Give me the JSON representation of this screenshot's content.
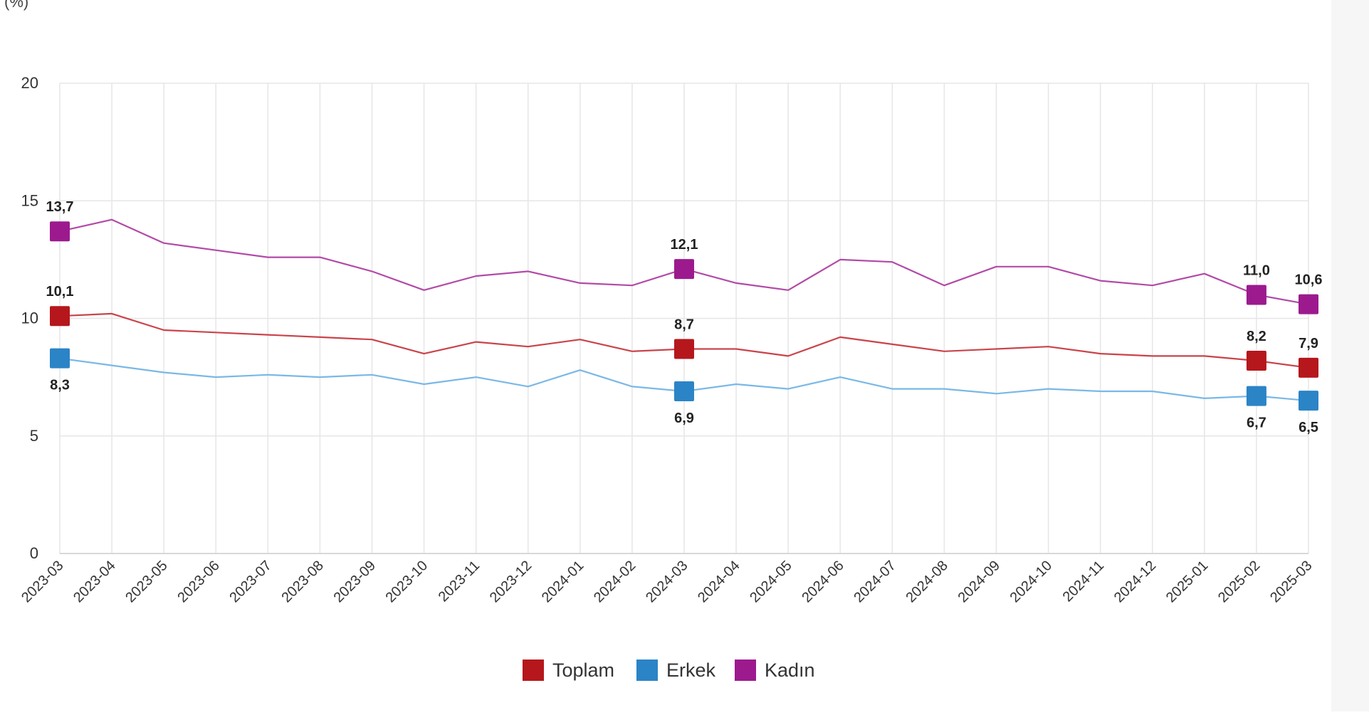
{
  "chart_data": {
    "type": "line",
    "unit_label": "(%)",
    "x": [
      "2023-03",
      "2023-04",
      "2023-05",
      "2023-06",
      "2023-07",
      "2023-08",
      "2023-09",
      "2023-10",
      "2023-11",
      "2023-12",
      "2024-01",
      "2024-02",
      "2024-03",
      "2024-04",
      "2024-05",
      "2024-06",
      "2024-07",
      "2024-08",
      "2024-09",
      "2024-10",
      "2024-11",
      "2024-12",
      "2025-01",
      "2025-02",
      "2025-03"
    ],
    "yticks": [
      "0",
      "5",
      "10",
      "15",
      "20"
    ],
    "ylim": [
      0,
      20
    ],
    "grid": true,
    "legend_position": "bottom",
    "series": [
      {
        "name": "Toplam",
        "color": "#b5171c",
        "line_color": "#c9444a",
        "values": [
          10.1,
          10.2,
          9.5,
          9.4,
          9.3,
          9.2,
          9.1,
          8.5,
          9.0,
          8.8,
          9.1,
          8.6,
          8.7,
          8.7,
          8.4,
          9.2,
          8.9,
          8.6,
          8.7,
          8.8,
          8.5,
          8.4,
          8.4,
          8.2,
          7.9
        ],
        "labels": [
          {
            "index": 0,
            "text": "10,1",
            "pos": "above"
          },
          {
            "index": 12,
            "text": "8,7",
            "pos": "above"
          },
          {
            "index": 23,
            "text": "8,2",
            "pos": "above"
          },
          {
            "index": 24,
            "text": "7,9",
            "pos": "above"
          }
        ]
      },
      {
        "name": "Erkek",
        "color": "#2b84c6",
        "line_color": "#7ab8e6",
        "values": [
          8.3,
          8.0,
          7.7,
          7.5,
          7.6,
          7.5,
          7.6,
          7.2,
          7.5,
          7.1,
          7.8,
          7.1,
          6.9,
          7.2,
          7.0,
          7.5,
          7.0,
          7.0,
          6.8,
          7.0,
          6.9,
          6.9,
          6.6,
          6.7,
          6.5
        ],
        "labels": [
          {
            "index": 0,
            "text": "8,3",
            "pos": "below"
          },
          {
            "index": 12,
            "text": "6,9",
            "pos": "below"
          },
          {
            "index": 23,
            "text": "6,7",
            "pos": "below"
          },
          {
            "index": 24,
            "text": "6,5",
            "pos": "below"
          }
        ]
      },
      {
        "name": "Kadın",
        "color": "#9c1a8e",
        "line_color": "#b24aa6",
        "values": [
          13.7,
          14.2,
          13.2,
          12.9,
          12.6,
          12.6,
          12.0,
          11.2,
          11.8,
          12.0,
          11.5,
          11.4,
          12.1,
          11.5,
          11.2,
          12.5,
          12.4,
          11.4,
          12.2,
          12.2,
          11.6,
          11.4,
          11.9,
          11.0,
          10.6
        ],
        "labels": [
          {
            "index": 0,
            "text": "13,7",
            "pos": "above"
          },
          {
            "index": 12,
            "text": "12,1",
            "pos": "above"
          },
          {
            "index": 23,
            "text": "11,0",
            "pos": "above"
          },
          {
            "index": 24,
            "text": "10,6",
            "pos": "above"
          }
        ]
      }
    ]
  }
}
